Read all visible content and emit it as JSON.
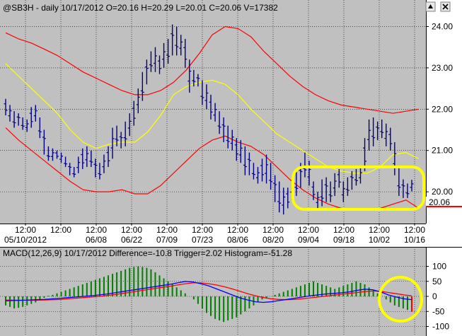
{
  "chart_data": [
    {
      "type": "line",
      "subtype": "ohlc-bars-with-bands",
      "title": "@SB3H - daily 10/17/2012 O=20.16 H=20.29 L=20.01 C=20.06 V=17382",
      "ylim": [
        19.3,
        24.3
      ],
      "y_ticks": [
        "20.00",
        "21.00",
        "22.00",
        "23.00",
        "24.00"
      ],
      "y_tick_values": [
        20,
        21,
        22,
        23,
        24
      ],
      "x_tick_top": [
        "12:00",
        "12:00",
        "12:00",
        "12:00",
        "12:00",
        "12:00",
        "12:00",
        "12:00",
        "12:00",
        "12:00",
        "12:00",
        "12:00"
      ],
      "x_tick_bottom": [
        "05/10/2012",
        "",
        "06/08",
        "06/22",
        "07/09",
        "07/23",
        "08/06",
        "08/20",
        "09/04",
        "09/18",
        "10/02",
        "10/16"
      ],
      "last_price_label": "20.06",
      "grid": true,
      "colors": {
        "bars": "#000080",
        "upper_band": "#ff0000",
        "lower_band": "#ff0000",
        "middle_band": "#ffff00",
        "highlight": "#ffff00",
        "background": "#c0c0c0"
      },
      "ohlc": [
        [
          22.25,
          21.85
        ],
        [
          22.1,
          21.7
        ],
        [
          21.95,
          21.55
        ],
        [
          21.9,
          21.6
        ],
        [
          21.8,
          21.5
        ],
        [
          21.75,
          21.45
        ],
        [
          22.05,
          21.55
        ],
        [
          22.1,
          21.7
        ],
        [
          21.8,
          21.3
        ],
        [
          21.5,
          20.9
        ],
        [
          21.1,
          20.75
        ],
        [
          21.05,
          20.75
        ],
        [
          21.0,
          20.8
        ],
        [
          20.95,
          20.7
        ],
        [
          20.85,
          20.6
        ],
        [
          20.7,
          20.4
        ],
        [
          20.6,
          20.35
        ],
        [
          20.85,
          20.45
        ],
        [
          21.05,
          20.55
        ],
        [
          21.1,
          20.6
        ],
        [
          21.0,
          20.6
        ],
        [
          20.8,
          20.35
        ],
        [
          20.7,
          20.3
        ],
        [
          20.9,
          20.45
        ],
        [
          21.1,
          20.6
        ],
        [
          21.55,
          20.8
        ],
        [
          21.6,
          21.1
        ],
        [
          21.45,
          21.05
        ],
        [
          21.7,
          21.1
        ],
        [
          21.9,
          21.35
        ],
        [
          22.2,
          21.6
        ],
        [
          22.5,
          21.9
        ],
        [
          22.9,
          22.2
        ],
        [
          23.2,
          22.6
        ],
        [
          23.4,
          22.9
        ],
        [
          23.5,
          22.9
        ],
        [
          23.3,
          22.85
        ],
        [
          23.6,
          23.0
        ],
        [
          23.7,
          23.1
        ],
        [
          24.05,
          23.3
        ],
        [
          24.0,
          23.3
        ],
        [
          23.8,
          23.3
        ],
        [
          23.7,
          23.0
        ],
        [
          23.2,
          22.4
        ],
        [
          22.95,
          22.55
        ],
        [
          22.85,
          22.55
        ],
        [
          22.7,
          22.1
        ],
        [
          22.6,
          22.0
        ],
        [
          22.35,
          21.75
        ],
        [
          22.15,
          21.7
        ],
        [
          21.95,
          21.4
        ],
        [
          21.8,
          21.2
        ],
        [
          21.6,
          21.05
        ],
        [
          21.5,
          21.0
        ],
        [
          21.3,
          20.75
        ],
        [
          21.25,
          20.7
        ],
        [
          21.1,
          20.4
        ],
        [
          20.95,
          20.4
        ],
        [
          20.7,
          20.3
        ],
        [
          20.6,
          20.2
        ],
        [
          20.8,
          20.25
        ],
        [
          20.9,
          20.2
        ],
        [
          20.7,
          20.05
        ],
        [
          20.4,
          19.75
        ],
        [
          20.25,
          19.5
        ],
        [
          20.1,
          19.45
        ],
        [
          20.1,
          19.6
        ],
        [
          20.35,
          19.8
        ],
        [
          20.5,
          19.9
        ],
        [
          20.7,
          20.1
        ],
        [
          20.95,
          20.35
        ],
        [
          20.75,
          20.15
        ],
        [
          20.25,
          19.8
        ],
        [
          20.0,
          19.6
        ],
        [
          20.3,
          19.65
        ],
        [
          20.35,
          19.75
        ],
        [
          20.25,
          19.75
        ],
        [
          20.45,
          19.9
        ],
        [
          20.55,
          20.1
        ],
        [
          20.25,
          19.75
        ],
        [
          20.35,
          19.9
        ],
        [
          20.5,
          20.05
        ],
        [
          20.55,
          20.15
        ],
        [
          20.6,
          20.2
        ],
        [
          21.3,
          20.5
        ],
        [
          21.75,
          21.0
        ],
        [
          21.8,
          21.1
        ],
        [
          21.7,
          21.25
        ],
        [
          21.75,
          21.3
        ],
        [
          21.65,
          21.1
        ],
        [
          21.55,
          21.0
        ],
        [
          21.2,
          20.4
        ],
        [
          20.6,
          19.9
        ],
        [
          20.3,
          19.85
        ],
        [
          20.2,
          19.85
        ],
        [
          20.29,
          20.01
        ]
      ],
      "upper_band": [
        23.85,
        23.7,
        23.6,
        23.45,
        23.3,
        23.1,
        22.9,
        22.75,
        22.6,
        22.45,
        22.35,
        22.35,
        22.45,
        22.65,
        22.95,
        23.35,
        23.8,
        24.0,
        23.95,
        23.75,
        23.4,
        23.1,
        22.8,
        22.55,
        22.35,
        22.2,
        22.1,
        22.05,
        22.0,
        21.95,
        21.9,
        21.95,
        22.0
      ],
      "lower_band": [
        21.55,
        21.25,
        21.0,
        20.75,
        20.5,
        20.25,
        20.05,
        20.0,
        20.0,
        20.05,
        19.95,
        19.95,
        20.15,
        20.45,
        20.75,
        21.05,
        21.25,
        21.35,
        21.2,
        21.1,
        20.9,
        20.6,
        20.3,
        20.05,
        19.85,
        19.7,
        19.6,
        19.55,
        19.55,
        19.6,
        19.7,
        19.8,
        19.6
      ],
      "middle_band": [
        23.1,
        22.8,
        22.5,
        22.2,
        21.9,
        21.5,
        21.2,
        21.05,
        21.15,
        21.2,
        21.2,
        21.45,
        21.85,
        22.35,
        22.55,
        22.65,
        22.7,
        22.6,
        22.35,
        22.0,
        21.7,
        21.4,
        21.2,
        21.0,
        20.8,
        20.6,
        20.5,
        20.45,
        20.45,
        20.6,
        20.9,
        20.95,
        20.8
      ]
    },
    {
      "type": "bar",
      "subtype": "macd",
      "title": "MACD(12,26,9) 10/17/2012 Difference=-10.8 Trigger=2.02 Histogram=-51.28",
      "ylim": [
        -120,
        120
      ],
      "y_ticks": [
        "100",
        "50",
        "0",
        "-50",
        "-100"
      ],
      "y_tick_values": [
        100,
        50,
        0,
        -50,
        -100
      ],
      "colors": {
        "histogram": "#008000",
        "difference": "#0000ff",
        "trigger": "#ff0000"
      },
      "histogram": [
        -30,
        -35,
        -40,
        -38,
        -35,
        -30,
        -25,
        -20,
        -10,
        -5,
        2,
        5,
        10,
        15,
        20,
        25,
        30,
        35,
        40,
        45,
        50,
        55,
        60,
        65,
        70,
        75,
        80,
        85,
        90,
        95,
        98,
        100,
        98,
        95,
        90,
        80,
        70,
        60,
        50,
        40,
        30,
        20,
        10,
        0,
        -10,
        -25,
        -40,
        -55,
        -65,
        -75,
        -80,
        -85,
        -80,
        -75,
        -70,
        -60,
        -50,
        -40,
        -30,
        -20,
        -10,
        -5,
        0,
        5,
        10,
        15,
        20,
        25,
        30,
        35,
        40,
        45,
        50,
        45,
        40,
        35,
        30,
        25,
        30,
        35,
        40,
        45,
        50,
        45,
        40,
        30,
        20,
        10,
        0,
        -10,
        -20,
        -30,
        -35,
        -40,
        -45,
        -51.28
      ],
      "difference": [
        -15,
        -14,
        -13,
        -12,
        -11,
        -10,
        -8,
        -6,
        -4,
        -2,
        0,
        2,
        5,
        8,
        12,
        16,
        20,
        24,
        28,
        32,
        36,
        40,
        45,
        50,
        48,
        42,
        35,
        25,
        15,
        5,
        -5,
        -12,
        -18,
        -20,
        -18,
        -14,
        -10,
        -6,
        -2,
        2,
        5,
        8,
        10,
        12,
        15,
        20,
        24,
        22,
        15,
        5,
        -2,
        -8,
        -10.8
      ],
      "trigger": [
        -12,
        -12.5,
        -13,
        -13,
        -12.5,
        -12,
        -11,
        -10,
        -8,
        -6,
        -4,
        -2,
        0,
        3,
        6,
        10,
        14,
        18,
        22,
        26,
        30,
        34,
        38,
        42,
        45,
        45,
        42,
        38,
        32,
        25,
        17,
        9,
        2,
        -4,
        -8,
        -10,
        -11,
        -10,
        -8,
        -5,
        -2,
        1,
        4,
        7,
        10,
        13,
        16,
        18,
        17,
        13,
        9,
        5,
        2.02
      ]
    }
  ]
}
